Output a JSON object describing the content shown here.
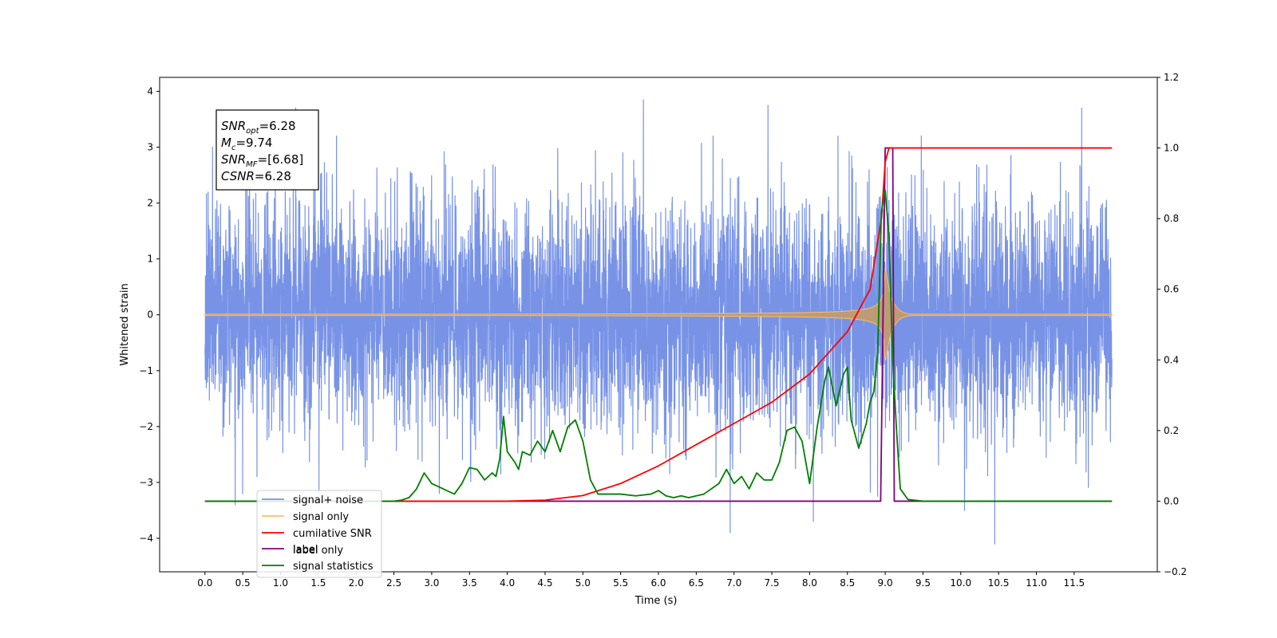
{
  "chart_data": {
    "type": "line",
    "xlabel": "Time (s)",
    "ylabel": "Whitened strain",
    "xlim": [
      -0.6,
      12.6
    ],
    "ylim": [
      -4.6,
      4.25
    ],
    "y2lim": [
      -0.2,
      1.2
    ],
    "xticks": [
      "0.0",
      "0.5",
      "1.0",
      "1.5",
      "2.0",
      "2.5",
      "3.0",
      "3.5",
      "4.0",
      "4.5",
      "5.0",
      "5.5",
      "6.0",
      "6.5",
      "7.0",
      "7.5",
      "8.0",
      "8.5",
      "9.0",
      "9.5",
      "10.0",
      "10.5",
      "11.0",
      "11.5"
    ],
    "yticks": [
      "4",
      "3",
      "2",
      "1",
      "0",
      "−1",
      "−2",
      "−3",
      "−4"
    ],
    "y2ticks": [
      "1.2",
      "1.0",
      "0.8",
      "0.6",
      "0.4",
      "0.2",
      "0.0",
      "−0.2"
    ],
    "grid": false,
    "legend_position": "lower-left",
    "annotation": {
      "lines": [
        {
          "main": "SNR",
          "sub": "opt",
          "value": "=6.28"
        },
        {
          "main": "M",
          "sub": "c",
          "value": "=9.74"
        },
        {
          "main": "SNR",
          "sub": "MF",
          "value": "=[6.68]"
        },
        {
          "main": "CSNR",
          "sub": "",
          "value": "=6.28"
        }
      ]
    },
    "series": [
      {
        "name": "signal+ noise",
        "axis": "left",
        "color": "#7893e6",
        "kind": "noise",
        "x_range": [
          0.0,
          12.0
        ],
        "samples": 6000,
        "std": 1.0,
        "merger_time": 9.0,
        "points": [
          [
            0.1,
            3.0
          ],
          [
            1.2,
            3.7
          ],
          [
            5.8,
            3.85
          ],
          [
            7.45,
            3.75
          ],
          [
            11.6,
            3.7
          ],
          [
            0.4,
            -3.4
          ],
          [
            6.95,
            -3.9
          ],
          [
            8.05,
            -3.7
          ],
          [
            10.45,
            -4.1
          ],
          [
            10.05,
            -3.5
          ],
          [
            3.1,
            -3.2
          ],
          [
            8.9,
            -3.25
          ]
        ]
      },
      {
        "name": "signal only",
        "axis": "left",
        "color": "#ffbe60",
        "kind": "chirp",
        "x_range": [
          0.0,
          12.0
        ],
        "merger_time": 9.0,
        "peak_amplitude": 0.9,
        "ringdown": 0.08
      },
      {
        "name": "cumilative SNR",
        "axis": "right",
        "color": "#ff0000",
        "x": [
          0.0,
          4.0,
          4.5,
          5.0,
          5.5,
          6.0,
          6.5,
          7.0,
          7.5,
          8.0,
          8.5,
          8.8,
          8.95,
          9.0,
          9.05,
          12.0
        ],
        "values": [
          0.0,
          0.0,
          0.003,
          0.016,
          0.05,
          0.1,
          0.16,
          0.22,
          0.28,
          0.36,
          0.48,
          0.6,
          0.8,
          0.96,
          1.0,
          1.0
        ]
      },
      {
        "name": "label",
        "axis": "right",
        "color": "#800080",
        "x": [
          0.0,
          8.94,
          9.0,
          9.1,
          9.12,
          12.0
        ],
        "values": [
          0.0,
          0.0,
          1.0,
          1.0,
          0.0,
          0.0
        ]
      },
      {
        "name": "label only",
        "axis": "right",
        "color": "#bbbbbb",
        "x": [],
        "values": []
      },
      {
        "name": "signal statistics",
        "axis": "right",
        "color": "#007f00",
        "x": [
          0.0,
          0.5,
          1.0,
          1.5,
          2.0,
          2.5,
          2.6,
          2.7,
          2.8,
          2.9,
          3.0,
          3.1,
          3.2,
          3.3,
          3.4,
          3.5,
          3.6,
          3.7,
          3.8,
          3.85,
          3.9,
          3.95,
          4.0,
          4.1,
          4.15,
          4.2,
          4.3,
          4.4,
          4.5,
          4.6,
          4.7,
          4.8,
          4.9,
          5.0,
          5.1,
          5.2,
          5.3,
          5.5,
          5.7,
          5.9,
          6.0,
          6.1,
          6.2,
          6.3,
          6.4,
          6.5,
          6.6,
          6.7,
          6.8,
          6.9,
          7.0,
          7.1,
          7.2,
          7.3,
          7.4,
          7.5,
          7.6,
          7.7,
          7.8,
          7.9,
          8.0,
          8.1,
          8.2,
          8.25,
          8.35,
          8.45,
          8.5,
          8.55,
          8.65,
          8.75,
          8.8,
          8.85,
          8.9,
          8.95,
          9.0,
          9.05,
          9.1,
          9.15,
          9.2,
          9.3,
          9.5,
          12.0
        ],
        "values": [
          0.0,
          0.0,
          0.0,
          0.0,
          0.0,
          0.0,
          0.003,
          0.01,
          0.035,
          0.08,
          0.05,
          0.04,
          0.03,
          0.02,
          0.05,
          0.095,
          0.09,
          0.06,
          0.08,
          0.07,
          0.12,
          0.24,
          0.14,
          0.11,
          0.09,
          0.14,
          0.13,
          0.17,
          0.14,
          0.2,
          0.14,
          0.21,
          0.23,
          0.17,
          0.06,
          0.02,
          0.02,
          0.02,
          0.015,
          0.02,
          0.03,
          0.015,
          0.01,
          0.015,
          0.01,
          0.015,
          0.02,
          0.035,
          0.05,
          0.09,
          0.05,
          0.07,
          0.035,
          0.08,
          0.06,
          0.06,
          0.11,
          0.2,
          0.21,
          0.17,
          0.05,
          0.21,
          0.34,
          0.38,
          0.27,
          0.36,
          0.38,
          0.23,
          0.15,
          0.22,
          0.28,
          0.31,
          0.42,
          0.82,
          0.88,
          0.75,
          0.4,
          0.2,
          0.035,
          0.005,
          0.0,
          0.0
        ]
      }
    ]
  }
}
